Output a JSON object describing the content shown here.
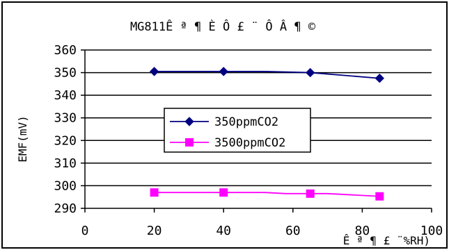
{
  "chart_data": {
    "type": "line",
    "title": "MG811Ê ª ¶ È Ô £ ¨ Ô Â ¶ ©",
    "xlabel": "Ê ª ¶ £ ¨%RH)",
    "ylabel": "EMF(mV)",
    "xlim": [
      0,
      100
    ],
    "ylim": [
      290,
      360
    ],
    "xticks": [
      "0",
      "20",
      "40",
      "60",
      "80",
      "100"
    ],
    "yticks": [
      "290",
      "300",
      "310",
      "320",
      "330",
      "340",
      "350",
      "360"
    ],
    "grid": {
      "horizontal": true,
      "vertical": false
    },
    "legend": {
      "position": "center"
    },
    "series": [
      {
        "name": "350ppmCO2",
        "color": "#000080",
        "marker": "diamond",
        "x": [
          20,
          40,
          52,
          65,
          85
        ],
        "y": [
          350.5,
          350.5,
          350.5,
          350,
          347.5
        ]
      },
      {
        "name": "3500ppmCO2",
        "color": "#FF00FF",
        "marker": "square",
        "x": [
          20,
          40,
          52,
          58,
          65,
          70,
          85
        ],
        "y": [
          297,
          297,
          297,
          296.5,
          296.5,
          296.5,
          295.3
        ]
      }
    ]
  }
}
